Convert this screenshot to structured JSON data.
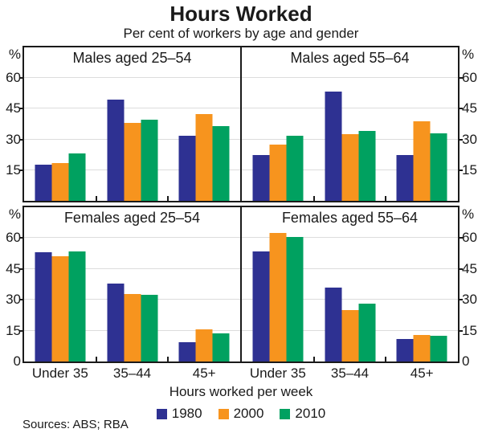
{
  "title": "Hours Worked",
  "subtitle": "Per cent of workers by age and gender",
  "xlabel": "Hours worked per week",
  "sources": "Sources: ABS; RBA",
  "colors": {
    "series_1980": "#2E3192",
    "series_2000": "#F7941E",
    "series_2010": "#00A160",
    "gridline": "#DCDCDC",
    "axis": "#1A1A1A"
  },
  "legend": {
    "position": "bottom-center",
    "items": [
      {
        "label": "1980",
        "color": "#2E3192"
      },
      {
        "label": "2000",
        "color": "#F7941E"
      },
      {
        "label": "2010",
        "color": "#00A160"
      }
    ]
  },
  "chart_data": {
    "type": "bar",
    "title": "Hours Worked",
    "subtitle": "Per cent of workers by age and gender",
    "xlabel": "Hours worked per week",
    "unit": "%",
    "categories": [
      "Under 35",
      "35–44",
      "45+"
    ],
    "y_axis": {
      "symbol": "%",
      "max": 75,
      "min": 0,
      "gridlines": [
        15,
        30,
        45,
        60
      ],
      "top_row_tick_labels": [
        "%",
        "60",
        "45",
        "30",
        "15"
      ],
      "bottom_row_tick_labels": [
        "%",
        "60",
        "45",
        "30",
        "15",
        "0"
      ],
      "grid": true
    },
    "panels": [
      {
        "title": "Males aged 25–54",
        "row": 0,
        "col": 0,
        "series": [
          {
            "name": "1980",
            "values": [
              17.5,
              49.5,
              32
            ]
          },
          {
            "name": "2000",
            "values": [
              18.5,
              38,
              42.5
            ]
          },
          {
            "name": "2010",
            "values": [
              23,
              39.5,
              36.5
            ]
          }
        ]
      },
      {
        "title": "Males aged 55–64",
        "row": 0,
        "col": 1,
        "series": [
          {
            "name": "1980",
            "values": [
              22.5,
              53.5,
              22.5
            ]
          },
          {
            "name": "2000",
            "values": [
              27.5,
              32.5,
              39
            ]
          },
          {
            "name": "2010",
            "values": [
              32,
              34,
              33
            ]
          }
        ]
      },
      {
        "title": "Females aged 25–54",
        "row": 1,
        "col": 0,
        "series": [
          {
            "name": "1980",
            "values": [
              53,
              38,
              9.5
            ]
          },
          {
            "name": "2000",
            "values": [
              51,
              33,
              15.5
            ]
          },
          {
            "name": "2010",
            "values": [
              53.5,
              32.5,
              13.5
            ]
          }
        ]
      },
      {
        "title": "Females aged 55–64",
        "row": 1,
        "col": 1,
        "series": [
          {
            "name": "1980",
            "values": [
              53.5,
              36,
              11
            ]
          },
          {
            "name": "2000",
            "values": [
              62.5,
              25,
              13
            ]
          },
          {
            "name": "2010",
            "values": [
              60.5,
              28,
              12.5
            ]
          }
        ]
      }
    ]
  }
}
